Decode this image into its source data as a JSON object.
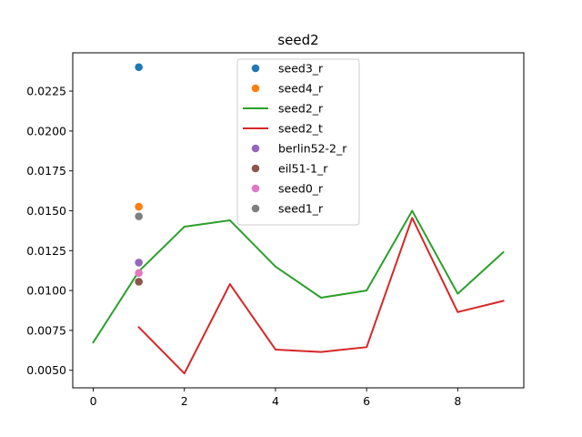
{
  "chart_data": {
    "type": "line",
    "title": "seed2",
    "xlabel": "",
    "ylabel": "",
    "xlim": [
      -0.45,
      9.45
    ],
    "ylim": [
      0.0039,
      0.0249
    ],
    "xticks": [
      0,
      2,
      4,
      6,
      8
    ],
    "xtick_labels": [
      "0",
      "2",
      "4",
      "6",
      "8"
    ],
    "yticks": [
      0.005,
      0.0075,
      0.01,
      0.0125,
      0.015,
      0.0175,
      0.02,
      0.0225
    ],
    "ytick_labels": [
      "0.0050",
      "0.0075",
      "0.0100",
      "0.0125",
      "0.0150",
      "0.0175",
      "0.0200",
      "0.0225"
    ],
    "grid": false,
    "legend_position": "top-center",
    "series": [
      {
        "name": "seed3_r",
        "kind": "scatter",
        "color": "#1f77b4",
        "x": [
          1
        ],
        "y": [
          0.024
        ]
      },
      {
        "name": "seed4_r",
        "kind": "scatter",
        "color": "#ff7f0e",
        "x": [
          1
        ],
        "y": [
          0.01525
        ]
      },
      {
        "name": "seed2_r",
        "kind": "line",
        "color": "#2ca02c",
        "x": [
          0,
          1,
          2,
          3,
          4,
          5,
          6,
          7,
          8,
          9
        ],
        "y": [
          0.00675,
          0.0112,
          0.014,
          0.0144,
          0.0115,
          0.00955,
          0.01,
          0.015,
          0.0098,
          0.0124
        ]
      },
      {
        "name": "seed2_t",
        "kind": "line",
        "color": "#d62728",
        "x": [
          1,
          2,
          3,
          4,
          5,
          6,
          7,
          8,
          9
        ],
        "y": [
          0.0077,
          0.0048,
          0.0104,
          0.0063,
          0.00615,
          0.00645,
          0.01455,
          0.00865,
          0.00935
        ]
      },
      {
        "name": "berlin52-2_r",
        "kind": "scatter",
        "color": "#9467bd",
        "x": [
          1
        ],
        "y": [
          0.01175
        ]
      },
      {
        "name": "eil51-1_r",
        "kind": "scatter",
        "color": "#8c564b",
        "x": [
          1
        ],
        "y": [
          0.01055
        ]
      },
      {
        "name": "seed0_r",
        "kind": "scatter",
        "color": "#e377c2",
        "x": [
          1
        ],
        "y": [
          0.0111
        ]
      },
      {
        "name": "seed1_r",
        "kind": "scatter",
        "color": "#7f7f7f",
        "x": [
          1
        ],
        "y": [
          0.01465
        ]
      }
    ]
  }
}
